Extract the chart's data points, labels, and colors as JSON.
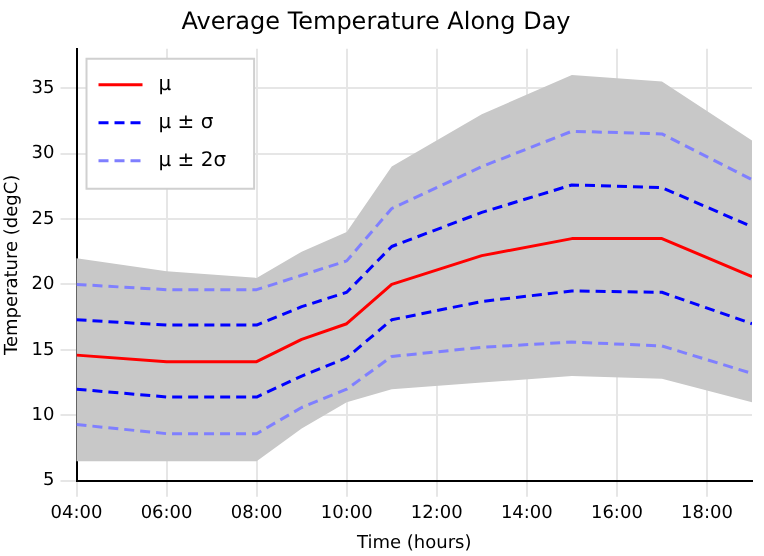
{
  "chart_data": {
    "type": "line",
    "title": "Average Temperature Along Day",
    "xlabel": "Time (hours)",
    "ylabel": "Temperature (degC)",
    "x": [
      4,
      6,
      8,
      9,
      10,
      11,
      13,
      15,
      17,
      19
    ],
    "xlim": [
      4,
      19
    ],
    "xticks": [
      {
        "value": 4,
        "label": "04:00"
      },
      {
        "value": 6,
        "label": "06:00"
      },
      {
        "value": 8,
        "label": "08:00"
      },
      {
        "value": 10,
        "label": "10:00"
      },
      {
        "value": 12,
        "label": "12:00"
      },
      {
        "value": 14,
        "label": "14:00"
      },
      {
        "value": 16,
        "label": "16:00"
      },
      {
        "value": 18,
        "label": "18:00"
      }
    ],
    "ylim": [
      5,
      38
    ],
    "yticks": [
      5,
      10,
      15,
      20,
      25,
      30,
      35
    ],
    "grid": true,
    "legend": "top left",
    "marker": "none",
    "series": [
      {
        "name": "μ",
        "color": "#ff0000",
        "line_style": "solid",
        "values": [
          14.6,
          14.1,
          14.1,
          15.8,
          17.0,
          20.0,
          22.2,
          23.5,
          23.5,
          20.6
        ],
        "lower": [
          6.5,
          6.5,
          6.5,
          9,
          11,
          12,
          12.5,
          13,
          12.8,
          11
        ],
        "upper": [
          22,
          21,
          20.5,
          22.5,
          24,
          29,
          33,
          36,
          35.5,
          31
        ]
      },
      {
        "name": "μ ± σ",
        "color": "#0000ff",
        "line_style": "dashed",
        "values": [
          17.3,
          16.9,
          16.9,
          18.3,
          19.4,
          22.9,
          25.5,
          27.6,
          27.4,
          24.4
        ]
      },
      {
        "color": "#0000ff",
        "line_style": "dashed",
        "values": [
          12.0,
          11.4,
          11.4,
          13.0,
          14.4,
          17.3,
          18.7,
          19.5,
          19.4,
          17.0
        ]
      },
      {
        "name": "μ ± 2σ",
        "color": "#7f7fff",
        "line_style": "dashed",
        "values": [
          20.0,
          19.6,
          19.6,
          20.7,
          21.8,
          25.8,
          29.0,
          31.7,
          31.5,
          28.0
        ]
      },
      {
        "color": "#7f7fff",
        "line_style": "dashed",
        "values": [
          9.3,
          8.6,
          8.6,
          10.6,
          12.0,
          14.5,
          15.2,
          15.6,
          15.3,
          13.2
        ]
      }
    ]
  }
}
